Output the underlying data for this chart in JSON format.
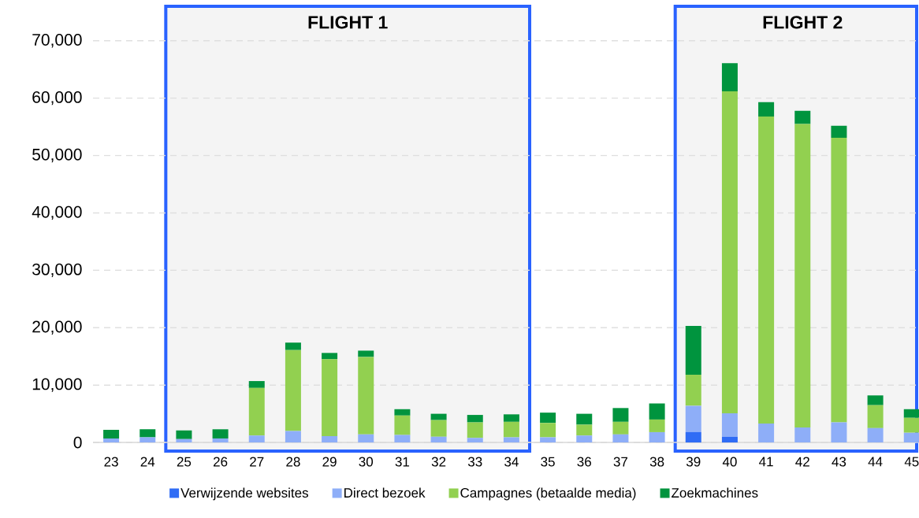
{
  "chart_data": {
    "type": "bar",
    "stacked": true,
    "categories": [
      "23",
      "24",
      "25",
      "26",
      "27",
      "28",
      "29",
      "30",
      "31",
      "32",
      "33",
      "34",
      "35",
      "36",
      "37",
      "38",
      "39",
      "40",
      "41",
      "42",
      "43",
      "44",
      "45"
    ],
    "series": [
      {
        "name": "Verwijzende websites",
        "color": "#2f6cf5",
        "values": [
          0,
          0,
          0,
          0,
          0,
          0,
          0,
          0,
          0,
          0,
          0,
          0,
          0,
          0,
          0,
          0,
          1800,
          1000,
          0,
          0,
          0,
          0,
          0
        ]
      },
      {
        "name": "Direct bezoek",
        "color": "#8eaef8",
        "values": [
          700,
          900,
          600,
          700,
          1200,
          2000,
          1100,
          1400,
          1300,
          1000,
          800,
          900,
          900,
          1200,
          1400,
          1800,
          4600,
          4100,
          3300,
          2600,
          3500,
          2500,
          1700
        ]
      },
      {
        "name": "Campagnes (betaalde media)",
        "color": "#92d050",
        "values": [
          0,
          0,
          0,
          0,
          8300,
          14100,
          13400,
          13500,
          3400,
          2900,
          2700,
          2700,
          2500,
          1900,
          2200,
          2200,
          5400,
          56100,
          53500,
          52900,
          49600,
          4000,
          2600
        ]
      },
      {
        "name": "Zoekmachines",
        "color": "#00943e",
        "values": [
          1500,
          1400,
          1500,
          1600,
          1200,
          1300,
          1100,
          1100,
          1100,
          1100,
          1300,
          1300,
          1800,
          1900,
          2400,
          2800,
          8500,
          4900,
          2500,
          2300,
          2100,
          1700,
          1500
        ]
      }
    ],
    "ylim": [
      -1500,
      76000
    ],
    "yticks": [
      0,
      {
        "value": 10000,
        "label": "10,000"
      },
      {
        "value": 20000,
        "label": "20,000"
      },
      {
        "value": 30000,
        "label": "30,000"
      },
      {
        "value": 40000,
        "label": "40,000"
      },
      {
        "value": 50000,
        "label": "50,000"
      },
      {
        "value": 60000,
        "label": "60,000"
      },
      {
        "value": 70000,
        "label": "70,000"
      }
    ],
    "grid": "y",
    "legend": "bottom",
    "bands": [
      {
        "axis": "x",
        "from": "25",
        "to": "34",
        "label": "FLIGHT 1",
        "color": "#2962ff"
      },
      {
        "axis": "x",
        "from": "39",
        "to": "45",
        "label": "FLIGHT 2",
        "color": "#2962ff"
      }
    ]
  }
}
